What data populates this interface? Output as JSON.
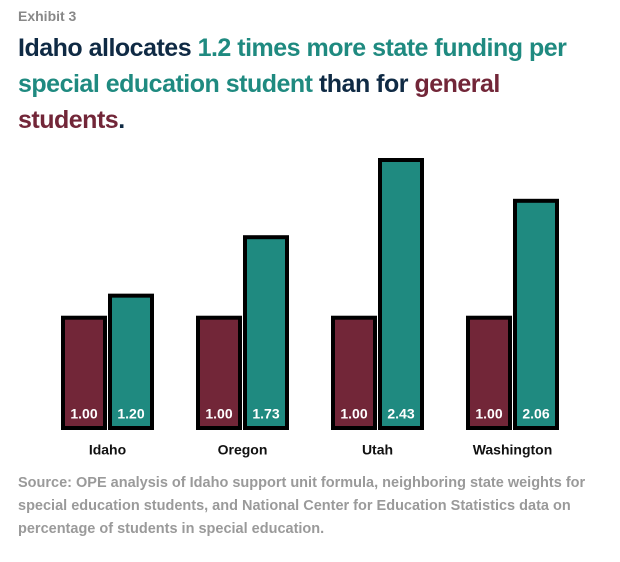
{
  "chart_data": {
    "type": "bar",
    "exhibit": "Exhibit 3",
    "title_parts": [
      {
        "text": "Idaho allocates ",
        "color": "#0f2a44"
      },
      {
        "text": "1.2 times more state funding per special education student",
        "color": "#1f8a80"
      },
      {
        "text": " than for ",
        "color": "#0f2a44"
      },
      {
        "text": "general students",
        "color": "#722638"
      },
      {
        "text": ".",
        "color": "#0f2a44"
      }
    ],
    "categories": [
      "Idaho",
      "Oregon",
      "Utah",
      "Washington"
    ],
    "series": [
      {
        "name": "general",
        "color": "#722638",
        "values": [
          1,
          1,
          1,
          1
        ],
        "value_labels": [
          "1.00",
          "1.00",
          "1.00",
          "1.00"
        ]
      },
      {
        "name": "special education",
        "color": "#1f8a80",
        "values": [
          1.2,
          1.73,
          2.43,
          2.06
        ],
        "value_labels": [
          "1.20",
          "1.73",
          "2.43",
          "2.06"
        ]
      }
    ],
    "source": "Source: OPE analysis of Idaho support unit formula, neighboring state weights for special education students, and National Center for Education Statistics data on percentage of students in special education."
  }
}
